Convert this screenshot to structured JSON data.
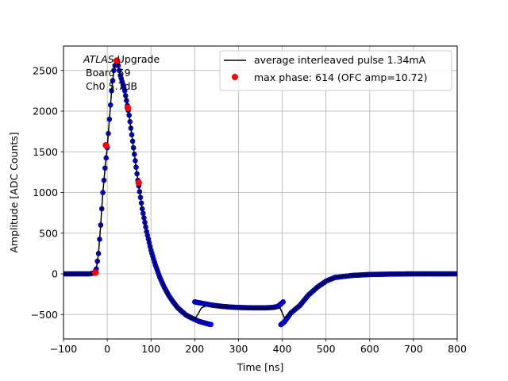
{
  "chart_data": {
    "type": "scatter",
    "title": "",
    "xlabel": "Time [ns]",
    "ylabel": "Amplitude [ADC Counts]",
    "xlim": [
      -100,
      800
    ],
    "ylim": [
      -800,
      2800
    ],
    "x_ticks": [
      -100,
      0,
      100,
      200,
      300,
      400,
      500,
      600,
      700,
      800
    ],
    "y_ticks": [
      -500,
      0,
      500,
      1000,
      1500,
      2000,
      2500
    ],
    "x_tick_labels": [
      "−100",
      "0",
      "100",
      "200",
      "300",
      "400",
      "500",
      "600",
      "700",
      "800"
    ],
    "y_tick_labels": [
      "−500",
      "0",
      "500",
      "1000",
      "1500",
      "2000",
      "2500"
    ],
    "grid": true,
    "legend_position": "top-right",
    "annotation": {
      "italic": "ATLAS",
      "line1_rest": " Upgrade",
      "line2": "Board 59",
      "line3": "Ch0 5.7dB"
    },
    "series": [
      {
        "name": "average interleaved pulse 1.34mA",
        "kind": "line",
        "color": "#000000",
        "points": [
          [
            -100,
            0
          ],
          [
            -40,
            0
          ],
          [
            -30,
            10
          ],
          [
            -25,
            60
          ],
          [
            -20,
            250
          ],
          [
            -15,
            600
          ],
          [
            -10,
            1000
          ],
          [
            -5,
            1300
          ],
          [
            0,
            1550
          ],
          [
            5,
            1900
          ],
          [
            10,
            2250
          ],
          [
            15,
            2500
          ],
          [
            20,
            2620
          ],
          [
            25,
            2560
          ],
          [
            30,
            2440
          ],
          [
            40,
            2250
          ],
          [
            50,
            1950
          ],
          [
            60,
            1550
          ],
          [
            70,
            1150
          ],
          [
            80,
            800
          ],
          [
            90,
            520
          ],
          [
            100,
            290
          ],
          [
            110,
            110
          ],
          [
            120,
            -40
          ],
          [
            130,
            -160
          ],
          [
            140,
            -260
          ],
          [
            150,
            -340
          ],
          [
            160,
            -410
          ],
          [
            170,
            -460
          ],
          [
            180,
            -505
          ],
          [
            190,
            -535
          ],
          [
            200,
            -555
          ],
          [
            208,
            -490
          ],
          [
            215,
            -420
          ],
          [
            225,
            -395
          ],
          [
            260,
            -405
          ],
          [
            300,
            -418
          ],
          [
            340,
            -420
          ],
          [
            380,
            -420
          ],
          [
            395,
            -420
          ],
          [
            405,
            -540
          ],
          [
            420,
            -480
          ],
          [
            440,
            -390
          ],
          [
            460,
            -260
          ],
          [
            480,
            -165
          ],
          [
            500,
            -90
          ],
          [
            520,
            -45
          ],
          [
            560,
            -20
          ],
          [
            600,
            -8
          ],
          [
            650,
            -3
          ],
          [
            700,
            0
          ],
          [
            800,
            0
          ]
        ]
      },
      {
        "name": "",
        "kind": "scatter",
        "color": "#0000ff",
        "edge_color": "#000080",
        "points": [
          [
            -100,
            0
          ],
          [
            -40,
            0
          ],
          [
            -30,
            10
          ],
          [
            -25,
            60
          ],
          [
            -20,
            250
          ],
          [
            -15,
            600
          ],
          [
            -10,
            1000
          ],
          [
            -5,
            1300
          ],
          [
            0,
            1550
          ],
          [
            5,
            1900
          ],
          [
            10,
            2250
          ],
          [
            15,
            2500
          ],
          [
            20,
            2620
          ],
          [
            25,
            2560
          ],
          [
            30,
            2440
          ],
          [
            40,
            2250
          ],
          [
            50,
            1950
          ],
          [
            60,
            1550
          ],
          [
            70,
            1150
          ],
          [
            80,
            800
          ],
          [
            90,
            520
          ],
          [
            100,
            290
          ],
          [
            110,
            110
          ],
          [
            120,
            -40
          ],
          [
            130,
            -160
          ],
          [
            140,
            -260
          ],
          [
            150,
            -340
          ],
          [
            160,
            -410
          ],
          [
            170,
            -460
          ],
          [
            180,
            -505
          ],
          [
            190,
            -535
          ],
          [
            200,
            -560
          ],
          [
            210,
            -585
          ],
          [
            220,
            -600
          ],
          [
            230,
            -615
          ],
          [
            237,
            -622
          ]
        ]
      },
      {
        "name": "",
        "kind": "scatter",
        "color": "#0000ff",
        "edge_color": "#000080",
        "points": [
          [
            200,
            -345
          ],
          [
            220,
            -365
          ],
          [
            240,
            -385
          ],
          [
            260,
            -398
          ],
          [
            280,
            -408
          ],
          [
            300,
            -413
          ],
          [
            320,
            -416
          ],
          [
            340,
            -418
          ],
          [
            360,
            -418
          ],
          [
            380,
            -412
          ],
          [
            390,
            -400
          ],
          [
            397,
            -370
          ],
          [
            402,
            -345
          ]
        ]
      },
      {
        "name": "",
        "kind": "scatter",
        "color": "#0000ff",
        "edge_color": "#000080",
        "points": [
          [
            397,
            -625
          ],
          [
            405,
            -590
          ],
          [
            420,
            -480
          ],
          [
            440,
            -390
          ],
          [
            460,
            -260
          ],
          [
            480,
            -165
          ],
          [
            500,
            -90
          ],
          [
            520,
            -45
          ],
          [
            560,
            -20
          ],
          [
            600,
            -8
          ],
          [
            650,
            -3
          ],
          [
            700,
            0
          ],
          [
            800,
            0
          ]
        ]
      },
      {
        "name": "max phase: 614 (OFC amp=10.72)",
        "kind": "markers",
        "color": "#ff0000",
        "points": [
          [
            -27,
            15
          ],
          [
            -3,
            1580
          ],
          [
            22,
            2620
          ],
          [
            47,
            2040
          ],
          [
            72,
            1120
          ]
        ]
      }
    ]
  }
}
